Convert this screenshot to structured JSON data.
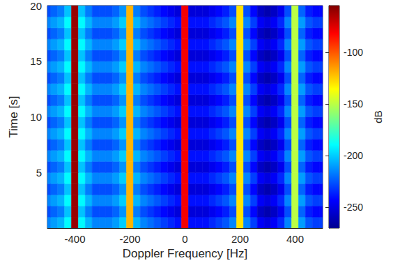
{
  "chart_data": {
    "type": "heatmap",
    "xlabel": "Doppler Frequency [Hz]",
    "ylabel": "Time [s]",
    "xlim": [
      -500,
      500
    ],
    "xticks": [
      -400,
      -200,
      0,
      200,
      400
    ],
    "ylim": [
      0,
      20
    ],
    "yticks": [
      5,
      10,
      15,
      20
    ],
    "x": [
      -500,
      -475,
      -450,
      -425,
      -400,
      -375,
      -350,
      -325,
      -300,
      -275,
      -250,
      -225,
      -200,
      -175,
      -150,
      -125,
      -100,
      -75,
      -50,
      -25,
      0,
      25,
      50,
      75,
      100,
      125,
      150,
      175,
      200,
      225,
      250,
      275,
      300,
      325,
      350,
      375,
      400,
      425,
      450,
      475,
      500
    ],
    "y": [
      0.5,
      1.5,
      2.5,
      3.5,
      4.5,
      5.5,
      6.5,
      7.5,
      8.5,
      9.5,
      10.5,
      11.5,
      12.5,
      13.5,
      14.5,
      15.5,
      16.5,
      17.5,
      18.5,
      19.5
    ],
    "cells": [
      [
        -215,
        -210,
        -205,
        -190,
        -60,
        -190,
        -205,
        -215,
        -215,
        -215,
        -210,
        -200,
        -120,
        -205,
        -215,
        -220,
        -225,
        -230,
        -235,
        -240,
        -80,
        -240,
        -240,
        -240,
        -235,
        -230,
        -225,
        -215,
        -130,
        -215,
        -230,
        -245,
        -250,
        -245,
        -235,
        -215,
        -150,
        -210,
        -225,
        -230,
        -230
      ],
      [
        -227,
        -222,
        -217,
        -202,
        -60,
        -202,
        -217,
        -227,
        -227,
        -227,
        -222,
        -212,
        -120,
        -217,
        -227,
        -232,
        -237,
        -242,
        -247,
        -252,
        -80,
        -252,
        -252,
        -252,
        -247,
        -242,
        -237,
        -227,
        -130,
        -227,
        -242,
        -257,
        -262,
        -257,
        -247,
        -227,
        -150,
        -222,
        -237,
        -242,
        -242
      ],
      [
        -215,
        -210,
        -205,
        -190,
        -60,
        -190,
        -205,
        -215,
        -215,
        -215,
        -210,
        -200,
        -120,
        -205,
        -215,
        -220,
        -225,
        -230,
        -235,
        -240,
        -80,
        -240,
        -240,
        -240,
        -235,
        -230,
        -225,
        -215,
        -130,
        -215,
        -230,
        -245,
        -250,
        -245,
        -235,
        -215,
        -150,
        -210,
        -225,
        -230,
        -230
      ],
      [
        -227,
        -222,
        -217,
        -202,
        -60,
        -202,
        -217,
        -227,
        -227,
        -227,
        -222,
        -212,
        -120,
        -217,
        -227,
        -232,
        -237,
        -242,
        -247,
        -252,
        -80,
        -252,
        -252,
        -252,
        -247,
        -242,
        -237,
        -227,
        -130,
        -227,
        -242,
        -257,
        -262,
        -257,
        -247,
        -227,
        -150,
        -222,
        -237,
        -242,
        -242
      ],
      [
        -215,
        -210,
        -205,
        -190,
        -60,
        -190,
        -205,
        -215,
        -215,
        -215,
        -210,
        -200,
        -120,
        -205,
        -215,
        -220,
        -225,
        -230,
        -235,
        -240,
        -80,
        -240,
        -240,
        -240,
        -235,
        -230,
        -225,
        -215,
        -130,
        -215,
        -230,
        -245,
        -250,
        -245,
        -235,
        -215,
        -150,
        -210,
        -225,
        -230,
        -230
      ],
      [
        -227,
        -222,
        -217,
        -202,
        -60,
        -202,
        -217,
        -227,
        -227,
        -227,
        -222,
        -212,
        -120,
        -217,
        -227,
        -232,
        -237,
        -242,
        -247,
        -252,
        -80,
        -252,
        -252,
        -252,
        -247,
        -242,
        -237,
        -227,
        -130,
        -227,
        -242,
        -257,
        -262,
        -257,
        -247,
        -227,
        -150,
        -222,
        -237,
        -242,
        -242
      ],
      [
        -215,
        -210,
        -205,
        -190,
        -60,
        -190,
        -205,
        -215,
        -215,
        -215,
        -210,
        -200,
        -120,
        -205,
        -215,
        -220,
        -225,
        -230,
        -235,
        -240,
        -80,
        -240,
        -240,
        -240,
        -235,
        -230,
        -225,
        -215,
        -130,
        -215,
        -230,
        -245,
        -250,
        -245,
        -235,
        -215,
        -150,
        -210,
        -225,
        -230,
        -230
      ],
      [
        -227,
        -222,
        -217,
        -202,
        -60,
        -202,
        -217,
        -227,
        -227,
        -227,
        -222,
        -212,
        -120,
        -217,
        -227,
        -232,
        -237,
        -242,
        -247,
        -252,
        -80,
        -252,
        -252,
        -252,
        -247,
        -242,
        -237,
        -227,
        -130,
        -227,
        -242,
        -257,
        -262,
        -257,
        -247,
        -227,
        -150,
        -222,
        -237,
        -242,
        -242
      ],
      [
        -215,
        -210,
        -205,
        -190,
        -60,
        -190,
        -205,
        -215,
        -215,
        -215,
        -210,
        -200,
        -120,
        -205,
        -215,
        -220,
        -225,
        -230,
        -235,
        -240,
        -80,
        -240,
        -240,
        -240,
        -235,
        -230,
        -225,
        -215,
        -130,
        -215,
        -230,
        -245,
        -250,
        -245,
        -235,
        -215,
        -150,
        -210,
        -225,
        -230,
        -230
      ],
      [
        -227,
        -222,
        -217,
        -202,
        -60,
        -202,
        -217,
        -227,
        -227,
        -227,
        -222,
        -212,
        -120,
        -217,
        -227,
        -232,
        -237,
        -242,
        -247,
        -252,
        -80,
        -252,
        -252,
        -252,
        -247,
        -242,
        -237,
        -227,
        -130,
        -227,
        -242,
        -257,
        -262,
        -257,
        -247,
        -227,
        -150,
        -222,
        -237,
        -242,
        -242
      ],
      [
        -215,
        -210,
        -205,
        -190,
        -60,
        -190,
        -205,
        -215,
        -215,
        -215,
        -210,
        -200,
        -120,
        -205,
        -215,
        -220,
        -225,
        -230,
        -235,
        -240,
        -80,
        -240,
        -240,
        -240,
        -235,
        -230,
        -225,
        -215,
        -130,
        -215,
        -230,
        -245,
        -250,
        -245,
        -235,
        -215,
        -150,
        -210,
        -225,
        -230,
        -230
      ],
      [
        -227,
        -222,
        -217,
        -202,
        -60,
        -202,
        -217,
        -227,
        -227,
        -227,
        -222,
        -212,
        -120,
        -217,
        -227,
        -232,
        -237,
        -242,
        -247,
        -252,
        -80,
        -252,
        -252,
        -252,
        -247,
        -242,
        -237,
        -227,
        -130,
        -227,
        -242,
        -257,
        -262,
        -257,
        -247,
        -227,
        -150,
        -222,
        -237,
        -242,
        -242
      ],
      [
        -215,
        -210,
        -205,
        -190,
        -60,
        -190,
        -205,
        -215,
        -215,
        -215,
        -210,
        -200,
        -120,
        -205,
        -215,
        -220,
        -225,
        -230,
        -235,
        -240,
        -80,
        -240,
        -240,
        -240,
        -235,
        -230,
        -225,
        -215,
        -130,
        -215,
        -230,
        -245,
        -250,
        -245,
        -235,
        -215,
        -150,
        -210,
        -225,
        -230,
        -230
      ],
      [
        -227,
        -222,
        -217,
        -202,
        -60,
        -202,
        -217,
        -227,
        -227,
        -227,
        -222,
        -212,
        -120,
        -217,
        -227,
        -232,
        -237,
        -242,
        -247,
        -252,
        -80,
        -252,
        -252,
        -252,
        -247,
        -242,
        -237,
        -227,
        -130,
        -227,
        -242,
        -257,
        -262,
        -257,
        -247,
        -227,
        -150,
        -222,
        -237,
        -242,
        -242
      ],
      [
        -215,
        -210,
        -205,
        -190,
        -60,
        -190,
        -205,
        -215,
        -215,
        -215,
        -210,
        -200,
        -120,
        -205,
        -215,
        -220,
        -225,
        -230,
        -235,
        -240,
        -80,
        -240,
        -240,
        -240,
        -235,
        -230,
        -225,
        -215,
        -130,
        -215,
        -230,
        -245,
        -250,
        -245,
        -235,
        -215,
        -150,
        -210,
        -225,
        -230,
        -230
      ],
      [
        -227,
        -222,
        -217,
        -202,
        -60,
        -202,
        -217,
        -227,
        -227,
        -227,
        -222,
        -212,
        -120,
        -217,
        -227,
        -232,
        -237,
        -242,
        -247,
        -252,
        -80,
        -252,
        -252,
        -252,
        -247,
        -242,
        -237,
        -227,
        -130,
        -227,
        -242,
        -257,
        -262,
        -257,
        -247,
        -227,
        -150,
        -222,
        -237,
        -242,
        -242
      ],
      [
        -215,
        -210,
        -205,
        -190,
        -60,
        -190,
        -205,
        -215,
        -215,
        -215,
        -210,
        -200,
        -120,
        -205,
        -215,
        -220,
        -225,
        -230,
        -235,
        -240,
        -80,
        -240,
        -240,
        -240,
        -235,
        -230,
        -225,
        -215,
        -130,
        -215,
        -230,
        -245,
        -250,
        -245,
        -235,
        -215,
        -150,
        -210,
        -225,
        -230,
        -230
      ],
      [
        -227,
        -222,
        -217,
        -202,
        -60,
        -202,
        -217,
        -227,
        -227,
        -227,
        -222,
        -212,
        -120,
        -217,
        -227,
        -232,
        -237,
        -242,
        -247,
        -252,
        -80,
        -252,
        -252,
        -252,
        -247,
        -242,
        -237,
        -227,
        -130,
        -227,
        -242,
        -257,
        -262,
        -257,
        -247,
        -227,
        -150,
        -222,
        -237,
        -242,
        -242
      ],
      [
        -215,
        -210,
        -205,
        -190,
        -60,
        -190,
        -205,
        -215,
        -215,
        -215,
        -210,
        -200,
        -120,
        -205,
        -215,
        -220,
        -225,
        -230,
        -235,
        -240,
        -80,
        -240,
        -240,
        -240,
        -235,
        -230,
        -225,
        -215,
        -130,
        -215,
        -230,
        -245,
        -250,
        -245,
        -235,
        -215,
        -150,
        -210,
        -225,
        -230,
        -230
      ],
      [
        -227,
        -222,
        -217,
        -202,
        -60,
        -202,
        -217,
        -227,
        -227,
        -227,
        -222,
        -212,
        -120,
        -217,
        -227,
        -232,
        -237,
        -242,
        -247,
        -252,
        -80,
        -252,
        -252,
        -252,
        -247,
        -242,
        -237,
        -227,
        -130,
        -227,
        -242,
        -257,
        -262,
        -257,
        -247,
        -227,
        -150,
        -222,
        -237,
        -242,
        -242
      ]
    ],
    "colorbar": {
      "range": [
        -270,
        -55
      ],
      "ticks": [
        -250,
        -200,
        -150,
        -100
      ],
      "label": "dB"
    }
  }
}
